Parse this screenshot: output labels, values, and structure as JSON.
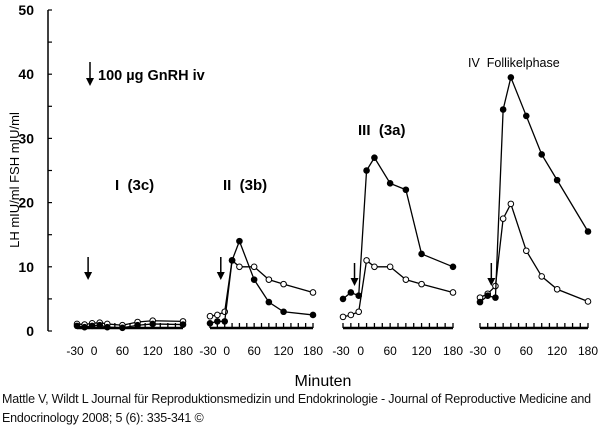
{
  "chart_data": {
    "type": "line",
    "ylabel": "LH mIU/ml  FSH mIU/ml",
    "xlabel": "Minuten",
    "ylim": [
      0,
      50
    ],
    "yticks": [
      0,
      10,
      20,
      30,
      40,
      50
    ],
    "xtick_labels": [
      "-30",
      "0",
      "60",
      "120",
      "180"
    ],
    "xtick_values": [
      -30,
      0,
      60,
      120,
      180
    ],
    "annotation": "100 µg GnRH iv",
    "x": [
      -30,
      -15,
      0,
      15,
      30,
      60,
      90,
      120,
      180
    ],
    "panels": [
      {
        "label": "I  (3c)",
        "series": [
          {
            "marker": "filled",
            "values": [
              0.8,
              0.6,
              0.8,
              0.9,
              0.6,
              0.5,
              0.9,
              1.1,
              1.0
            ]
          },
          {
            "marker": "open",
            "values": [
              1.1,
              1.0,
              1.2,
              1.3,
              1.1,
              0.9,
              1.4,
              1.6,
              1.5
            ]
          }
        ]
      },
      {
        "label": "II  (3b)",
        "series": [
          {
            "marker": "filled",
            "values": [
              1.2,
              1.5,
              1.5,
              11,
              14,
              8,
              4.5,
              3,
              2.5
            ]
          },
          {
            "marker": "open",
            "values": [
              2.3,
              2.5,
              3,
              11,
              10,
              10,
              8,
              7.3,
              6
            ]
          }
        ]
      },
      {
        "label": "III  (3a)",
        "series": [
          {
            "marker": "filled",
            "values": [
              5,
              6,
              5.5,
              25,
              27,
              23,
              22,
              12,
              10
            ]
          },
          {
            "marker": "open",
            "values": [
              2.2,
              2.5,
              3,
              11,
              10,
              10,
              8,
              7.3,
              6
            ]
          }
        ]
      },
      {
        "label": "IV  Follikelphase",
        "series": [
          {
            "marker": "filled",
            "values": [
              4.5,
              5.5,
              5.2,
              34.5,
              39.5,
              33.5,
              27.5,
              23.5,
              15.5
            ]
          },
          {
            "marker": "open",
            "values": [
              5.2,
              5.8,
              7,
              17.5,
              19.8,
              12.5,
              8.5,
              6.5,
              4.6
            ]
          }
        ]
      }
    ]
  },
  "caption": "Mattle V, Wildt L Journal für Reproduktionsmedizin und Endokrinologie - Journal of Reproductive Medicine and Endocrinology 2008; 5 (6): 335-341 ©"
}
